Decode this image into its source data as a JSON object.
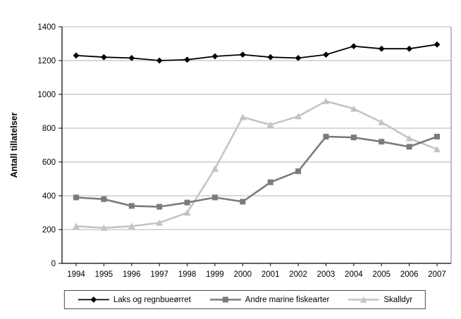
{
  "chart_data": {
    "type": "line",
    "title": "",
    "xlabel": "",
    "ylabel": "Antall tillatelser",
    "ylim": [
      0,
      1400
    ],
    "ytick_step": 200,
    "grid": true,
    "legend_position": "bottom",
    "categories": [
      "1994",
      "1995",
      "1996",
      "1997",
      "1998",
      "1999",
      "2000",
      "2001",
      "2002",
      "2003",
      "2004",
      "2005",
      "2006",
      "2007"
    ],
    "series": [
      {
        "name": "Laks og regnbueørret",
        "marker": "diamond",
        "color": "#000000",
        "line_width": 1.8,
        "values": [
          1230,
          1220,
          1215,
          1200,
          1205,
          1225,
          1235,
          1220,
          1215,
          1235,
          1285,
          1270,
          1270,
          1295
        ]
      },
      {
        "name": "Andre marine fiskearter",
        "marker": "square",
        "color": "#7b7b7b",
        "line_width": 2.6,
        "values": [
          390,
          380,
          340,
          335,
          360,
          390,
          365,
          480,
          545,
          750,
          745,
          720,
          690,
          750
        ]
      },
      {
        "name": "Skalldyr",
        "marker": "triangle",
        "color": "#c4c4c4",
        "line_width": 2.6,
        "values": [
          220,
          210,
          220,
          240,
          300,
          560,
          865,
          820,
          870,
          960,
          915,
          835,
          740,
          675
        ]
      }
    ]
  }
}
